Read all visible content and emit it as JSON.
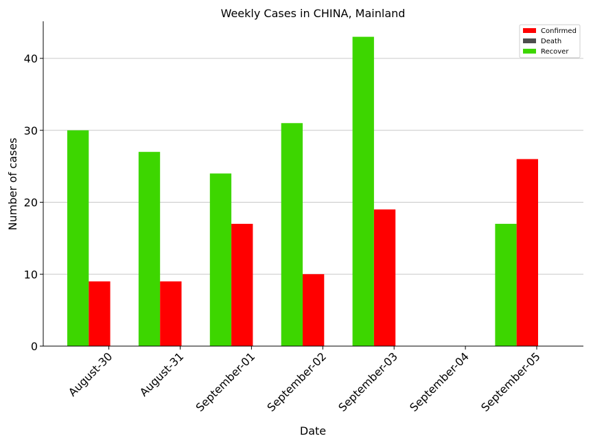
{
  "chart_data": {
    "type": "bar",
    "title": "Weekly Cases in CHINA, Mainland",
    "xlabel": "Date",
    "ylabel": "Number of cases",
    "categories": [
      "August-30",
      "August-31",
      "September-01",
      "September-02",
      "September-03",
      "September-04",
      "September-05"
    ],
    "series": [
      {
        "name": "Recover",
        "color": "#3dd600",
        "values": [
          30,
          27,
          24,
          31,
          43,
          0,
          17
        ]
      },
      {
        "name": "Confirmed",
        "color": "#ff0000",
        "values": [
          9,
          9,
          17,
          10,
          19,
          0,
          26
        ]
      },
      {
        "name": "Death",
        "color": "#4d4d4d",
        "values": [
          0,
          0,
          0,
          0,
          0,
          0,
          0
        ]
      }
    ],
    "legend": [
      "Confirmed",
      "Death",
      "Recover"
    ],
    "ylim": [
      0,
      45
    ],
    "yticks": [
      0,
      10,
      20,
      30,
      40
    ],
    "grid": "horizontal",
    "legend_position": "top-right"
  }
}
